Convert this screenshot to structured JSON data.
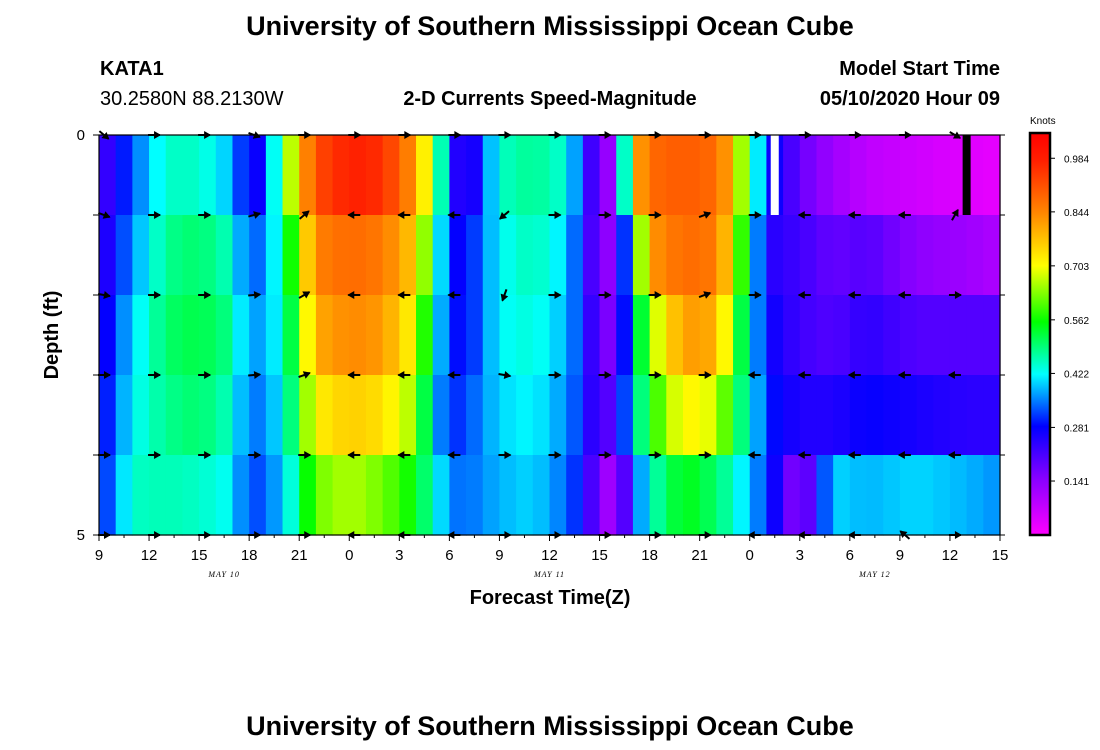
{
  "page": {
    "title_top": "University of Southern Mississippi Ocean Cube",
    "title_bottom": "University of Southern Mississippi Ocean Cube",
    "station_id": "KATA1",
    "station_coords": "30.2580N 88.2130W",
    "plot_title": "2-D Currents Speed-Magnitude",
    "model_start_label": "Model Start Time",
    "model_start_value": "05/10/2020 Hour 09"
  },
  "chart_data": {
    "type": "heatmap",
    "title": "2-D Currents Speed-Magnitude",
    "xlabel": "Forecast Time(Z)",
    "ylabel": "Depth (ft)",
    "x_tick_labels": [
      "9",
      "12",
      "15",
      "18",
      "21",
      "0",
      "3",
      "6",
      "9",
      "12",
      "15",
      "18",
      "21",
      "0",
      "3",
      "6",
      "9",
      "12",
      "15"
    ],
    "date_labels": [
      {
        "label": "MAY  10",
        "tick_index": 2.5
      },
      {
        "label": "MAY  11",
        "tick_index": 9
      },
      {
        "label": "MAY  12",
        "tick_index": 15.5
      }
    ],
    "y_tick_labels": [
      "0",
      "5"
    ],
    "ylim": [
      0,
      5
    ],
    "hours": 54,
    "depth_rows": 5,
    "colorbar": {
      "label": "Knots",
      "tick_labels": [
        "0.984",
        "0.844",
        "0.703",
        "0.562",
        "0.422",
        "0.281",
        "0.141"
      ],
      "tick_values": [
        0.984,
        0.844,
        0.703,
        0.562,
        0.422,
        0.281,
        0.141
      ],
      "min": 0.0,
      "max": 1.05
    },
    "speed_keyframes": [
      {
        "hour": 0,
        "speeds": [
          0.2,
          0.22,
          0.24,
          0.26,
          0.28
        ]
      },
      {
        "hour": 2,
        "speeds": [
          0.33,
          0.36,
          0.4,
          0.42,
          0.45
        ]
      },
      {
        "hour": 4,
        "speeds": [
          0.45,
          0.48,
          0.5,
          0.48,
          0.46
        ]
      },
      {
        "hour": 6,
        "speeds": [
          0.45,
          0.5,
          0.52,
          0.5,
          0.45
        ]
      },
      {
        "hour": 8,
        "speeds": [
          0.38,
          0.45,
          0.48,
          0.45,
          0.42
        ]
      },
      {
        "hour": 9,
        "speeds": [
          0.25,
          0.3,
          0.34,
          0.32,
          0.3
        ]
      },
      {
        "hour": 10,
        "speeds": [
          0.3,
          0.38,
          0.4,
          0.38,
          0.35
        ]
      },
      {
        "hour": 11,
        "speeds": [
          0.55,
          0.45,
          0.42,
          0.4,
          0.38
        ]
      },
      {
        "hour": 12,
        "speeds": [
          0.78,
          0.68,
          0.62,
          0.58,
          0.5
        ]
      },
      {
        "hour": 13,
        "speeds": [
          0.92,
          0.85,
          0.8,
          0.72,
          0.62
        ]
      },
      {
        "hour": 15,
        "speeds": [
          0.98,
          0.88,
          0.84,
          0.76,
          0.66
        ]
      },
      {
        "hour": 17,
        "speeds": [
          0.96,
          0.86,
          0.82,
          0.74,
          0.62
        ]
      },
      {
        "hour": 19,
        "speeds": [
          0.82,
          0.76,
          0.7,
          0.64,
          0.55
        ]
      },
      {
        "hour": 20,
        "speeds": [
          0.62,
          0.52,
          0.45,
          0.4,
          0.45
        ]
      },
      {
        "hour": 21,
        "speeds": [
          0.3,
          0.28,
          0.3,
          0.3,
          0.35
        ]
      },
      {
        "hour": 22,
        "speeds": [
          0.2,
          0.28,
          0.28,
          0.32,
          0.34
        ]
      },
      {
        "hour": 24,
        "speeds": [
          0.45,
          0.42,
          0.42,
          0.4,
          0.38
        ]
      },
      {
        "hour": 26,
        "speeds": [
          0.48,
          0.46,
          0.44,
          0.42,
          0.4
        ]
      },
      {
        "hour": 28,
        "speeds": [
          0.44,
          0.4,
          0.38,
          0.36,
          0.34
        ]
      },
      {
        "hour": 29,
        "speeds": [
          0.3,
          0.28,
          0.3,
          0.3,
          0.28
        ]
      },
      {
        "hour": 30,
        "speeds": [
          0.14,
          0.14,
          0.16,
          0.18,
          0.14
        ]
      },
      {
        "hour": 31,
        "speeds": [
          0.12,
          0.14,
          0.16,
          0.22,
          0.1
        ]
      },
      {
        "hour": 32,
        "speeds": [
          0.78,
          0.48,
          0.42,
          0.42,
          0.3
        ]
      },
      {
        "hour": 33,
        "speeds": [
          0.88,
          0.82,
          0.64,
          0.56,
          0.45
        ]
      },
      {
        "hour": 35,
        "speeds": [
          0.9,
          0.88,
          0.82,
          0.72,
          0.55
        ]
      },
      {
        "hour": 37,
        "speeds": [
          0.88,
          0.86,
          0.8,
          0.68,
          0.5
        ]
      },
      {
        "hour": 38,
        "speeds": [
          0.78,
          0.72,
          0.62,
          0.54,
          0.45
        ]
      },
      {
        "hour": 39,
        "speeds": [
          0.52,
          0.45,
          0.42,
          0.44,
          0.38
        ]
      },
      {
        "hour": 40,
        "speeds": [
          0.3,
          0.25,
          0.28,
          0.3,
          0.32
        ]
      },
      {
        "hour": 42,
        "speeds": [
          0.18,
          0.22,
          0.22,
          0.25,
          0.12
        ]
      },
      {
        "hour": 44,
        "speeds": [
          0.12,
          0.18,
          0.2,
          0.25,
          0.4
        ]
      },
      {
        "hour": 46,
        "speeds": [
          0.08,
          0.2,
          0.24,
          0.28,
          0.38
        ]
      },
      {
        "hour": 49,
        "speeds": [
          0.06,
          0.14,
          0.2,
          0.26,
          0.4
        ]
      },
      {
        "hour": 52,
        "speeds": [
          0.04,
          0.12,
          0.2,
          0.24,
          0.38
        ]
      },
      {
        "hour": 54,
        "speeds": [
          0.03,
          0.1,
          0.2,
          0.24,
          0.36
        ]
      }
    ],
    "missing_markers": [
      {
        "hour": 40.5,
        "row": 0,
        "color": "#ffffff"
      },
      {
        "hour": 52.0,
        "row": 0,
        "color": "#000000"
      }
    ],
    "vector_hours": [
      0,
      3,
      6,
      9,
      12,
      15,
      18,
      21,
      24,
      27,
      30,
      33,
      36,
      39,
      42,
      45,
      48,
      51
    ],
    "vector_depths": [
      0,
      1,
      2,
      3,
      4,
      5
    ],
    "vector_angles_deg": [
      [
        -40,
        0,
        0,
        -20,
        0,
        0,
        0,
        0,
        0,
        0,
        0,
        0,
        0,
        0,
        0,
        0,
        0,
        -30
      ],
      [
        -20,
        0,
        0,
        15,
        40,
        180,
        180,
        180,
        220,
        0,
        0,
        0,
        20,
        0,
        180,
        180,
        180,
        60
      ],
      [
        -10,
        0,
        0,
        5,
        30,
        180,
        180,
        180,
        250,
        0,
        0,
        0,
        20,
        0,
        180,
        180,
        180,
        0
      ],
      [
        0,
        0,
        0,
        5,
        20,
        180,
        180,
        180,
        -10,
        0,
        0,
        0,
        0,
        180,
        180,
        180,
        180,
        180
      ],
      [
        0,
        0,
        0,
        0,
        0,
        180,
        180,
        180,
        0,
        0,
        0,
        0,
        0,
        180,
        180,
        180,
        180,
        180
      ],
      [
        0,
        0,
        0,
        0,
        0,
        180,
        180,
        180,
        0,
        0,
        0,
        0,
        0,
        180,
        180,
        180,
        140,
        0
      ]
    ]
  }
}
